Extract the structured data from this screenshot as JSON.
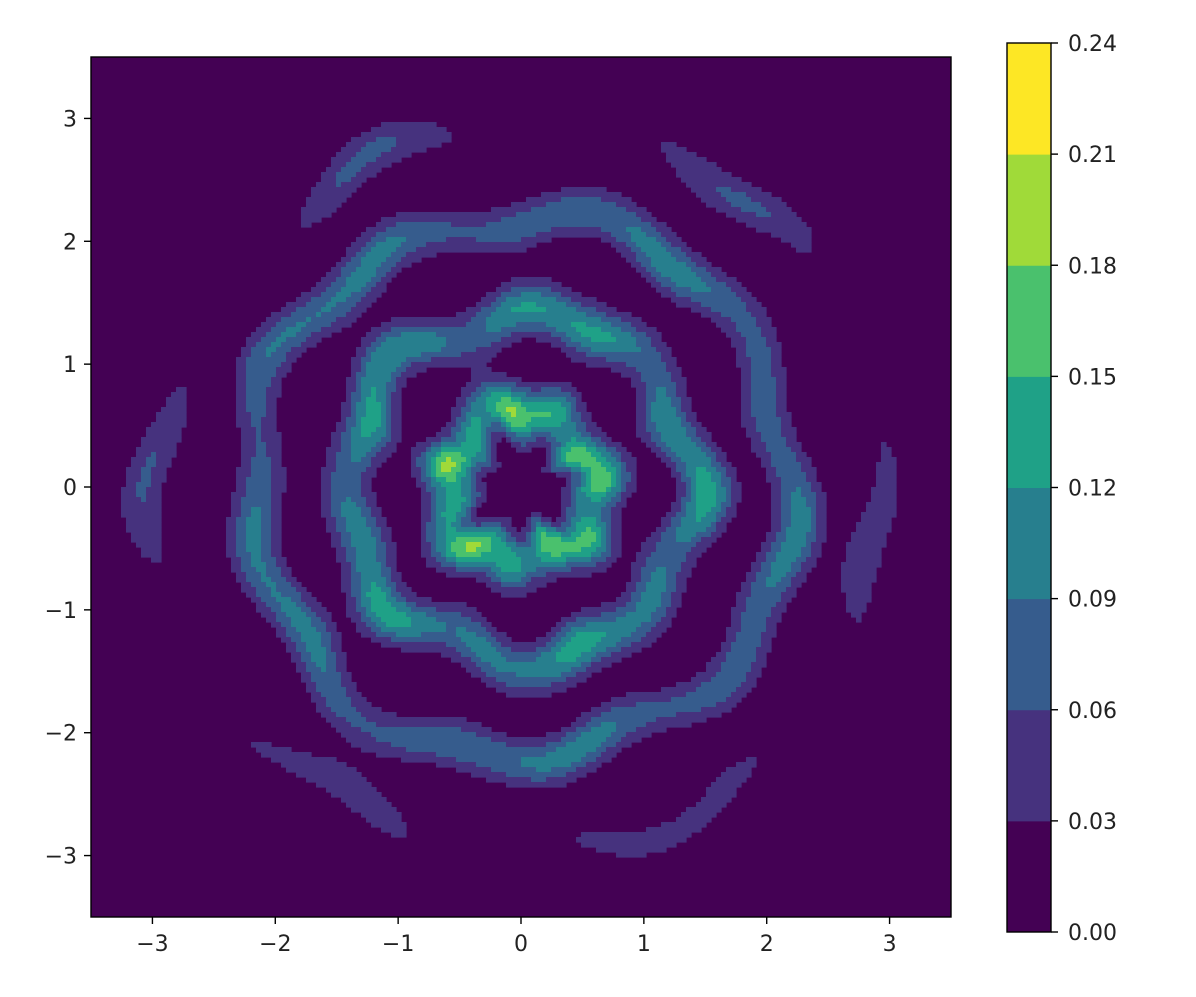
{
  "chart_data": {
    "type": "contourf",
    "title": "",
    "xlabel": "",
    "ylabel": "",
    "xlim": [
      -3.5,
      3.5
    ],
    "ylim": [
      -3.5,
      3.5
    ],
    "xticks": [
      -3,
      -2,
      -1,
      0,
      1,
      2,
      3
    ],
    "xtick_labels": [
      "−3",
      "−2",
      "−1",
      "0",
      "1",
      "2",
      "3"
    ],
    "yticks": [
      -3,
      -2,
      -1,
      0,
      1,
      2,
      3
    ],
    "ytick_labels": [
      "−3",
      "−2",
      "−1",
      "0",
      "1",
      "2",
      "3"
    ],
    "grid": false,
    "colormap": "viridis",
    "colorbar": {
      "levels": [
        0.0,
        0.03,
        0.06,
        0.09,
        0.12,
        0.15,
        0.18,
        0.21,
        0.24
      ],
      "tick_labels": [
        "0.00",
        "0.03",
        "0.06",
        "0.09",
        "0.12",
        "0.15",
        "0.18",
        "0.21",
        "0.24"
      ],
      "colors": [
        "#440154",
        "#46327e",
        "#365c8d",
        "#277f8e",
        "#1fa187",
        "#4ac16d",
        "#a0da39",
        "#fde725"
      ]
    },
    "rings": [
      {
        "radius": 0.6,
        "peak_density": 0.19
      },
      {
        "radius": 1.4,
        "peak_density": 0.14
      },
      {
        "radius": 2.2,
        "peak_density": 0.11
      },
      {
        "radius": 2.95,
        "peak_density": 0.07
      }
    ]
  }
}
